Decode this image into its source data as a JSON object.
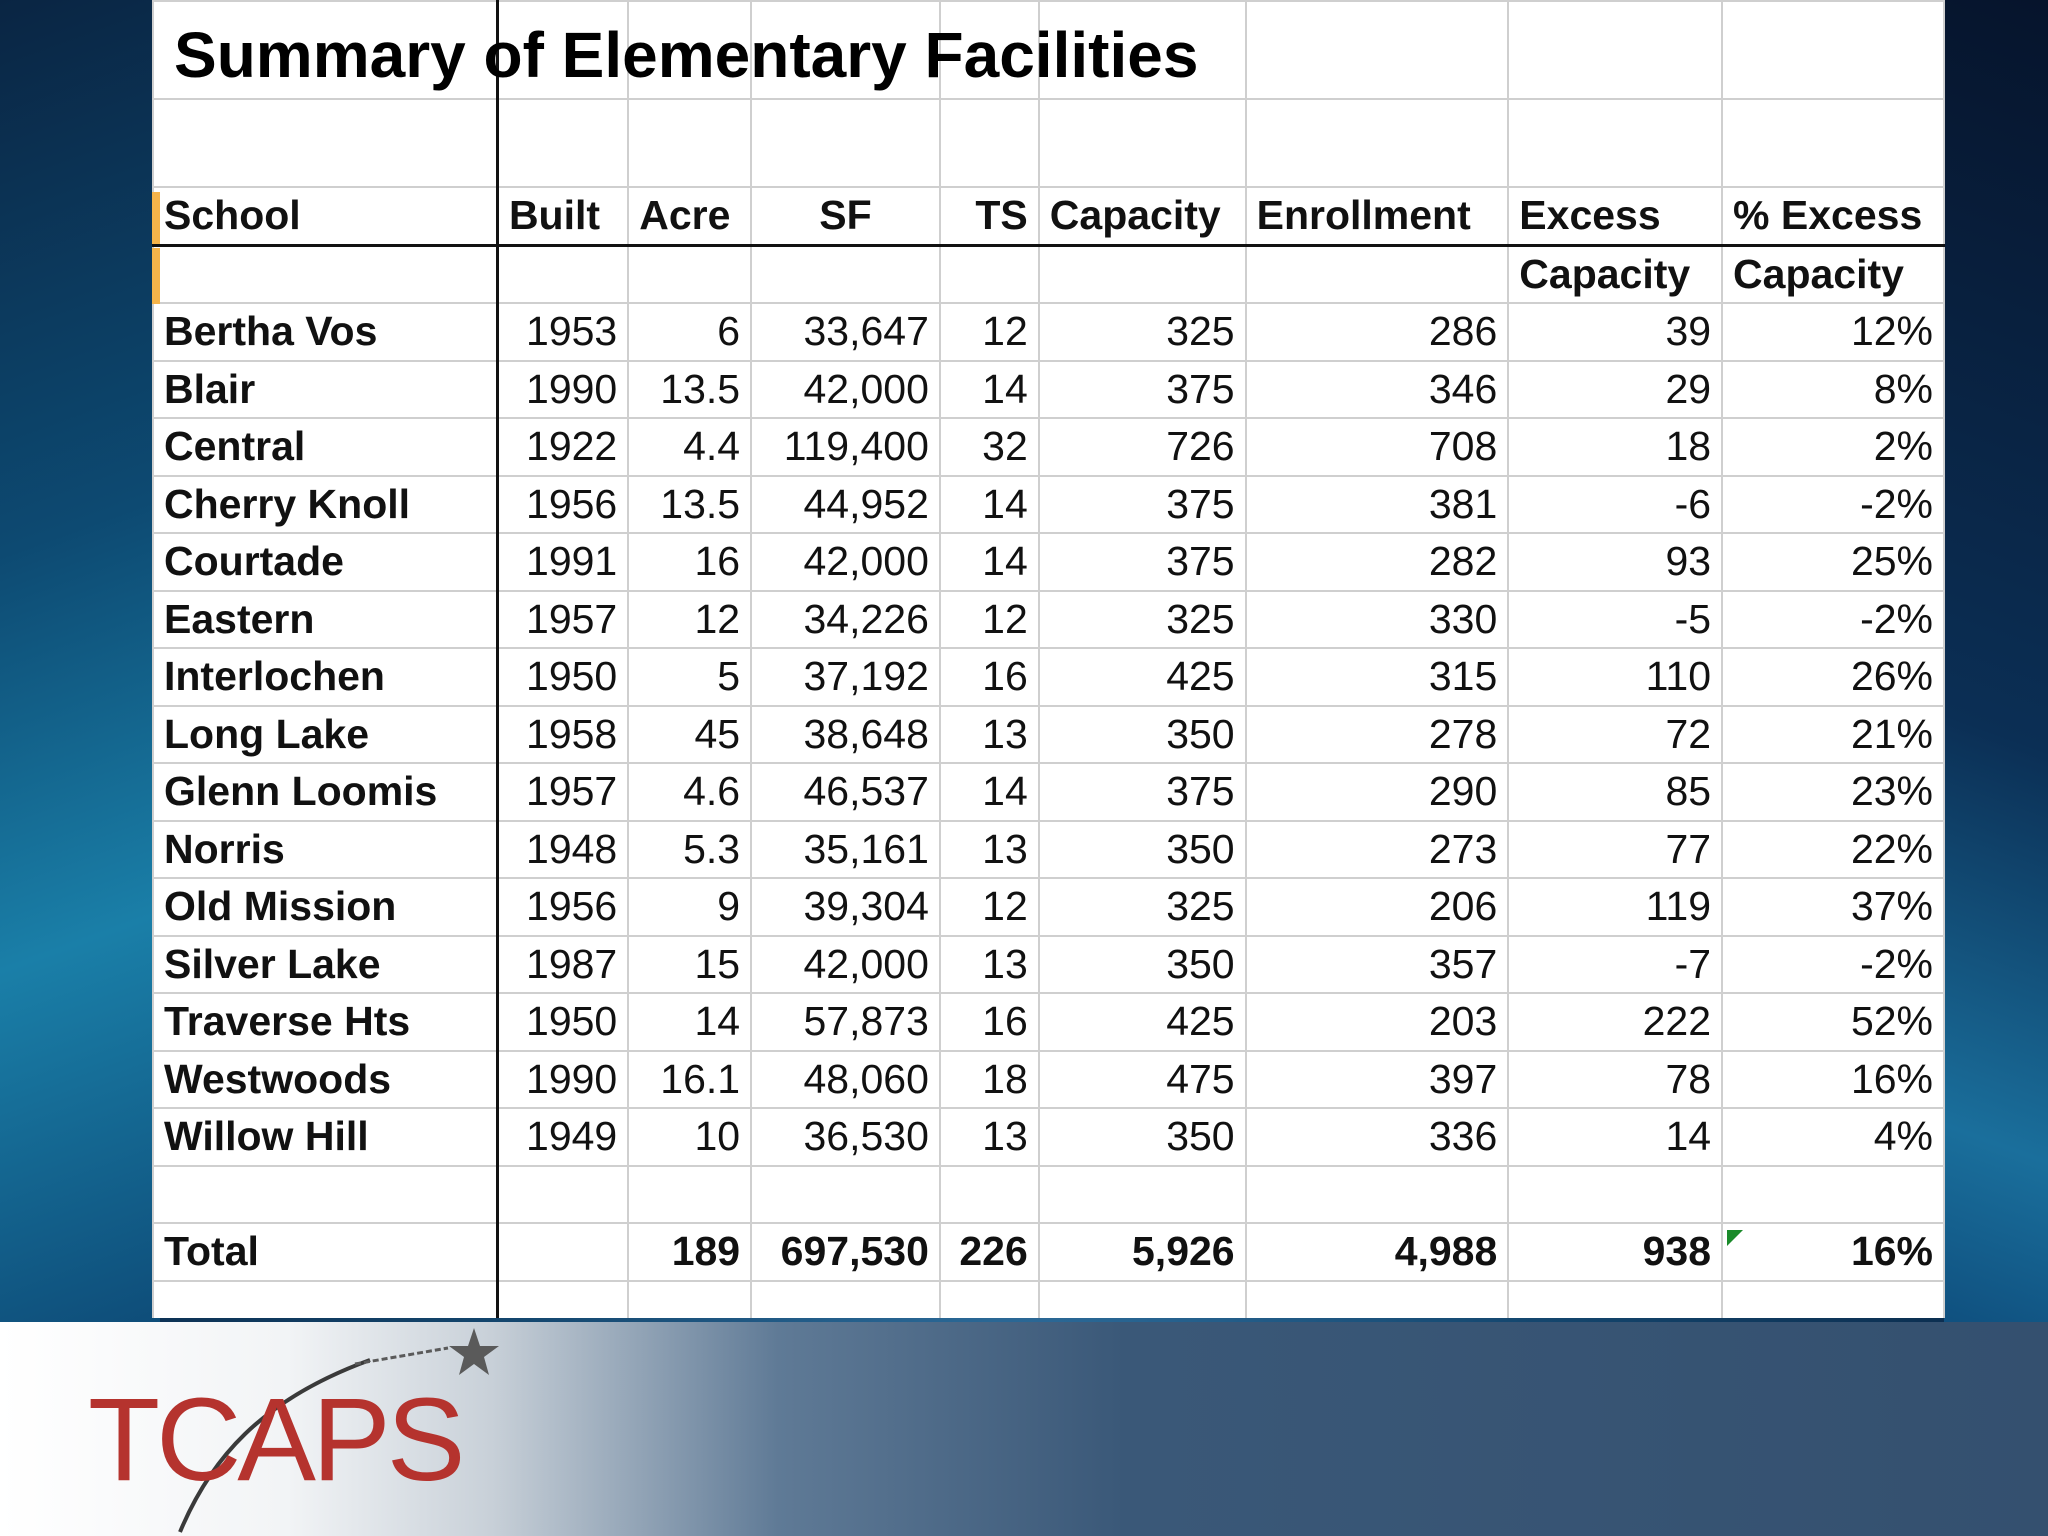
{
  "title": "Summary of Elementary Facilities",
  "columns": [
    "School",
    "Built",
    "Acre",
    "SF",
    "TS",
    "Capacity",
    "Enrollment",
    "Excess",
    "% Excess"
  ],
  "columns_sub": [
    "",
    "",
    "",
    "",
    "",
    "",
    "",
    "Capacity",
    "Capacity"
  ],
  "rows": [
    {
      "school": "Bertha Vos",
      "built": "1953",
      "acre": "6",
      "sf": "33,647",
      "ts": "12",
      "capacity": "325",
      "enrollment": "286",
      "excess": "39",
      "pct": "12%"
    },
    {
      "school": "Blair",
      "built": "1990",
      "acre": "13.5",
      "sf": "42,000",
      "ts": "14",
      "capacity": "375",
      "enrollment": "346",
      "excess": "29",
      "pct": "8%"
    },
    {
      "school": "Central",
      "built": "1922",
      "acre": "4.4",
      "sf": "119,400",
      "ts": "32",
      "capacity": "726",
      "enrollment": "708",
      "excess": "18",
      "pct": "2%"
    },
    {
      "school": "Cherry Knoll",
      "built": "1956",
      "acre": "13.5",
      "sf": "44,952",
      "ts": "14",
      "capacity": "375",
      "enrollment": "381",
      "excess": "-6",
      "pct": "-2%"
    },
    {
      "school": "Courtade",
      "built": "1991",
      "acre": "16",
      "sf": "42,000",
      "ts": "14",
      "capacity": "375",
      "enrollment": "282",
      "excess": "93",
      "pct": "25%"
    },
    {
      "school": "Eastern",
      "built": "1957",
      "acre": "12",
      "sf": "34,226",
      "ts": "12",
      "capacity": "325",
      "enrollment": "330",
      "excess": "-5",
      "pct": "-2%"
    },
    {
      "school": "Interlochen",
      "built": "1950",
      "acre": "5",
      "sf": "37,192",
      "ts": "16",
      "capacity": "425",
      "enrollment": "315",
      "excess": "110",
      "pct": "26%"
    },
    {
      "school": "Long Lake",
      "built": "1958",
      "acre": "45",
      "sf": "38,648",
      "ts": "13",
      "capacity": "350",
      "enrollment": "278",
      "excess": "72",
      "pct": "21%"
    },
    {
      "school": "Glenn Loomis",
      "built": "1957",
      "acre": "4.6",
      "sf": "46,537",
      "ts": "14",
      "capacity": "375",
      "enrollment": "290",
      "excess": "85",
      "pct": "23%"
    },
    {
      "school": "Norris",
      "built": "1948",
      "acre": "5.3",
      "sf": "35,161",
      "ts": "13",
      "capacity": "350",
      "enrollment": "273",
      "excess": "77",
      "pct": "22%"
    },
    {
      "school": "Old Mission",
      "built": "1956",
      "acre": "9",
      "sf": "39,304",
      "ts": "12",
      "capacity": "325",
      "enrollment": "206",
      "excess": "119",
      "pct": "37%"
    },
    {
      "school": "Silver Lake",
      "built": "1987",
      "acre": "15",
      "sf": "42,000",
      "ts": "13",
      "capacity": "350",
      "enrollment": "357",
      "excess": "-7",
      "pct": "-2%"
    },
    {
      "school": "Traverse Hts",
      "built": "1950",
      "acre": "14",
      "sf": "57,873",
      "ts": "16",
      "capacity": "425",
      "enrollment": "203",
      "excess": "222",
      "pct": "52%"
    },
    {
      "school": "Westwoods",
      "built": "1990",
      "acre": "16.1",
      "sf": "48,060",
      "ts": "18",
      "capacity": "475",
      "enrollment": "397",
      "excess": "78",
      "pct": "16%"
    },
    {
      "school": "Willow Hill",
      "built": "1949",
      "acre": "10",
      "sf": "36,530",
      "ts": "13",
      "capacity": "350",
      "enrollment": "336",
      "excess": "14",
      "pct": "4%"
    }
  ],
  "total": {
    "school": "Total",
    "built": "",
    "acre": "189",
    "sf": "697,530",
    "ts": "226",
    "capacity": "5,926",
    "enrollment": "4,988",
    "excess": "938",
    "pct": "16%"
  },
  "logo": {
    "text": "TCAPS",
    "color": "#b5332e"
  }
}
